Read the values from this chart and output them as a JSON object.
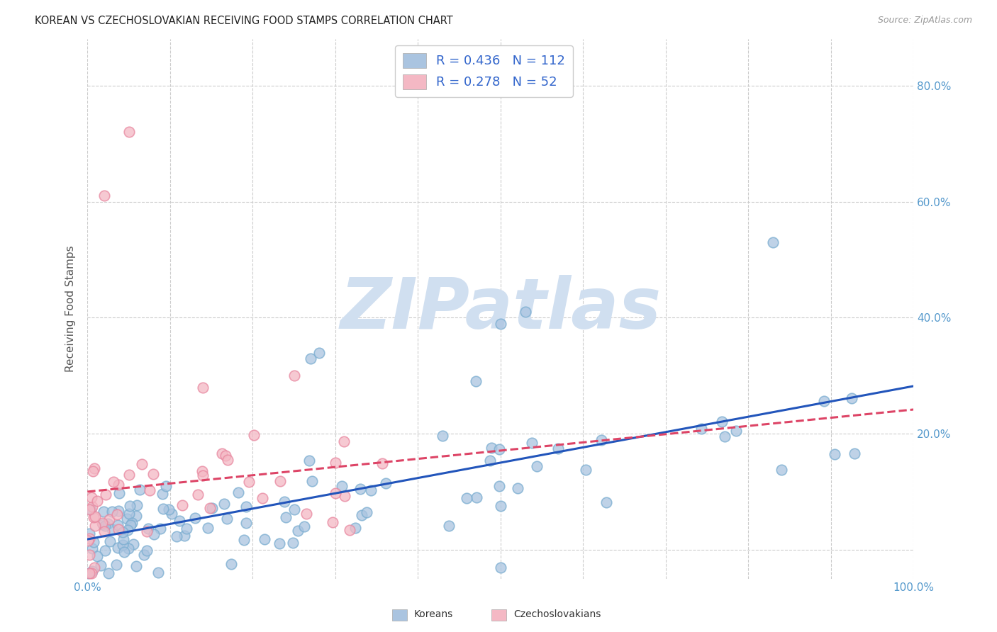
{
  "title": "KOREAN VS CZECHOSLOVAKIAN RECEIVING FOOD STAMPS CORRELATION CHART",
  "source": "Source: ZipAtlas.com",
  "ylabel": "Receiving Food Stamps",
  "xlim": [
    0,
    1.0
  ],
  "ylim": [
    -0.05,
    0.88
  ],
  "ytick_vals": [
    0.0,
    0.2,
    0.4,
    0.6,
    0.8
  ],
  "ytick_labels": [
    "",
    "20.0%",
    "40.0%",
    "60.0%",
    "80.0%"
  ],
  "xtick_vals": [
    0.0,
    0.1,
    0.2,
    0.3,
    0.4,
    0.5,
    0.6,
    0.7,
    0.8,
    0.9,
    1.0
  ],
  "xtick_labels": [
    "0.0%",
    "",
    "",
    "",
    "",
    "",
    "",
    "",
    "",
    "",
    "100.0%"
  ],
  "korean_color": "#aac4e0",
  "czech_color": "#f4b8c4",
  "korean_edge_color": "#7aadd0",
  "czech_edge_color": "#e888a0",
  "korean_line_color": "#2255bb",
  "czech_line_color": "#dd4466",
  "legend_box_korean": "#aac4e0",
  "legend_box_czech": "#f4b8c4",
  "legend_text_color": "#3366cc",
  "R_korean": 0.436,
  "N_korean": 112,
  "R_czech": 0.278,
  "N_czech": 52,
  "watermark": "ZIPatlas",
  "watermark_color": "#d0dff0",
  "legend_korean": "Koreans",
  "legend_czech": "Czechoslovakians",
  "background_color": "#ffffff",
  "grid_color": "#cccccc",
  "title_color": "#222222",
  "axis_label_color": "#5599cc",
  "ylabel_color": "#555555"
}
